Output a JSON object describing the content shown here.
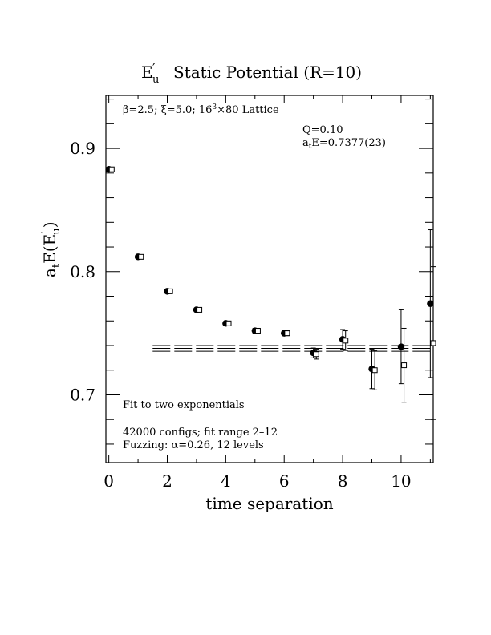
{
  "chart_data": {
    "type": "scatter",
    "title": "E′u  Static Potential (R=10)",
    "xlabel": "time separation",
    "ylabel": "atE(E′u)",
    "xlim": [
      -0.1,
      11.1
    ],
    "ylim": [
      0.645,
      0.943
    ],
    "x_ticks": [
      "0",
      "2",
      "4",
      "6",
      "8",
      "10"
    ],
    "x_tick_values": [
      0,
      2,
      4,
      6,
      8,
      10
    ],
    "y_ticks": [
      "0.7",
      "0.8",
      "0.9"
    ],
    "y_tick_values": [
      0.7,
      0.8,
      0.9
    ],
    "grid": false,
    "annotations": {
      "lattice": "β=2.5; ξ=5.0; 16³×80 Lattice",
      "q_value": "Q=0.10",
      "energy": "atE=0.7377(23)",
      "fit_type": "Fit to two exponentials",
      "configs": "42000 configs; fit range 2–12",
      "fuzzing": "Fuzzing: α=0.26, 12 levels"
    },
    "fit": {
      "x_range": [
        1.5,
        11.1
      ],
      "value": 0.7377,
      "error": 0.0023
    },
    "series": [
      {
        "marker": "filled-circle",
        "x": [
          0,
          1,
          2,
          3,
          4,
          5,
          6,
          7,
          8,
          9,
          10,
          11
        ],
        "y": [
          0.883,
          0.812,
          0.784,
          0.769,
          0.758,
          0.752,
          0.75,
          0.734,
          0.745,
          0.721,
          0.739,
          0.774
        ],
        "err": [
          0.001,
          0.001,
          0.001,
          0.001,
          0.001,
          0.002,
          0.002,
          0.004,
          0.008,
          0.016,
          0.03,
          0.06
        ]
      },
      {
        "marker": "open-square",
        "x": [
          0.1,
          1.1,
          2.1,
          3.1,
          4.1,
          5.1,
          6.1,
          7.1,
          8.1,
          9.1,
          10.1,
          11.1
        ],
        "y": [
          0.883,
          0.812,
          0.784,
          0.769,
          0.758,
          0.752,
          0.75,
          0.733,
          0.744,
          0.72,
          0.724,
          0.742
        ],
        "err": [
          0.001,
          0.001,
          0.001,
          0.001,
          0.001,
          0.002,
          0.002,
          0.004,
          0.008,
          0.016,
          0.03,
          0.062
        ]
      }
    ]
  }
}
